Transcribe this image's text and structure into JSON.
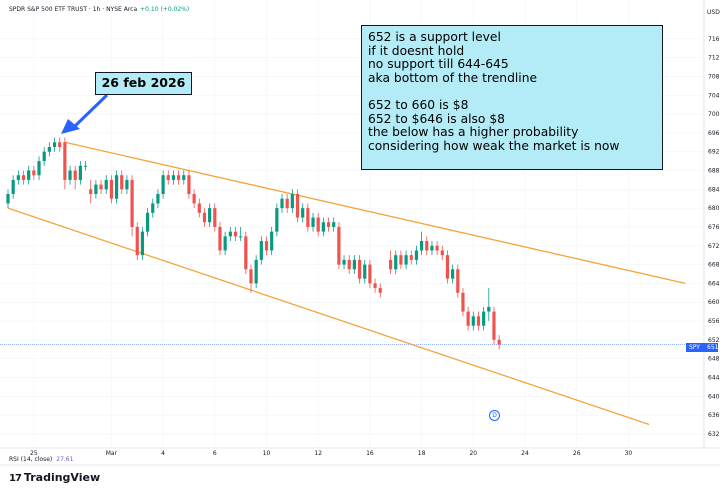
{
  "header": {
    "symbol_line": "SPDR S&P 500 ETF TRUST · 1h · NYSE Arca",
    "change": "+0.10 (+0.02%)",
    "currency": "USD"
  },
  "annotation": {
    "lines": [
      "652 is a support level",
      "if it doesnt hold",
      "no support till 644-645",
      "aka bottom of the trendline",
      "",
      "652 to 660 is $8",
      "652 to $646 is also $8",
      "the below has a higher probability",
      "considering how weak the market is now"
    ]
  },
  "callout": {
    "label": "26 feb 2026"
  },
  "price_tag": {
    "symbol": "SPY",
    "price": "651"
  },
  "indicator": {
    "label": "RSI (14, close)",
    "value": "27.61"
  },
  "brand": {
    "name": "TradingView"
  },
  "event_badge": {
    "label": "D"
  },
  "colors": {
    "up": "#089981",
    "down": "#ef5350",
    "trendline": "#f5a43c",
    "annotation_bg": "#b3ecf7",
    "accent": "#2962ff"
  },
  "chart_data": {
    "type": "candlestick",
    "ylim": [
      629,
      720
    ],
    "y_ticks": [
      632,
      636,
      640,
      644,
      648,
      652,
      656,
      660,
      664,
      668,
      672,
      676,
      680,
      684,
      688,
      692,
      696,
      700,
      704,
      708,
      712,
      716
    ],
    "x_tick_labels": [
      "25",
      "Mar",
      "4",
      "6",
      "10",
      "12",
      "16",
      "18",
      "20",
      "24",
      "26",
      "30"
    ],
    "x_range": [
      0,
      120
    ],
    "x_tick_positions": [
      5,
      20,
      30,
      40,
      50,
      60,
      70,
      80,
      90,
      100,
      110,
      120
    ],
    "grid": true,
    "candles": [
      [
        0,
        681,
        683,
        684,
        680
      ],
      [
        1,
        683,
        686,
        687,
        682
      ],
      [
        2,
        686,
        687,
        688,
        685
      ],
      [
        3,
        687,
        686,
        688,
        685
      ],
      [
        4,
        686,
        688,
        689,
        685
      ],
      [
        5,
        688,
        687,
        689,
        686
      ],
      [
        6,
        687,
        690,
        691,
        686
      ],
      [
        7,
        690,
        692,
        693,
        689
      ],
      [
        8,
        692,
        693,
        694,
        691
      ],
      [
        9,
        693,
        694,
        695,
        692
      ],
      [
        10,
        694,
        693,
        695,
        692
      ],
      [
        11,
        694,
        686,
        695,
        684
      ],
      [
        12,
        686,
        688,
        689,
        685
      ],
      [
        13,
        688,
        686,
        689,
        684
      ],
      [
        14,
        686,
        689,
        690,
        685
      ],
      [
        15,
        689,
        689,
        690,
        688
      ],
      [
        16,
        684,
        683,
        686,
        681
      ],
      [
        17,
        683,
        685,
        686,
        682
      ],
      [
        18,
        685,
        684,
        686,
        683
      ],
      [
        19,
        684,
        686,
        687,
        683
      ],
      [
        20,
        686,
        682,
        687,
        681
      ],
      [
        21,
        682,
        687,
        688,
        681
      ],
      [
        22,
        687,
        684,
        688,
        683
      ],
      [
        23,
        684,
        686,
        687,
        683
      ],
      [
        24,
        686,
        676,
        687,
        674
      ],
      [
        25,
        676,
        670,
        677,
        669
      ],
      [
        26,
        670,
        675,
        676,
        669
      ],
      [
        27,
        675,
        679,
        680,
        674
      ],
      [
        28,
        679,
        681,
        682,
        678
      ],
      [
        29,
        681,
        683,
        684,
        680
      ],
      [
        30,
        683,
        687,
        688,
        682
      ],
      [
        31,
        687,
        686,
        688,
        685
      ],
      [
        32,
        686,
        687,
        688,
        685
      ],
      [
        33,
        687,
        686,
        688,
        685
      ],
      [
        34,
        686,
        687,
        688,
        685
      ],
      [
        35,
        687,
        683,
        688,
        682
      ],
      [
        36,
        683,
        681,
        684,
        680
      ],
      [
        37,
        681,
        679,
        682,
        678
      ],
      [
        38,
        679,
        677,
        680,
        676
      ],
      [
        39,
        677,
        680,
        681,
        676
      ],
      [
        40,
        680,
        676,
        681,
        675
      ],
      [
        41,
        676,
        671,
        677,
        670
      ],
      [
        42,
        671,
        674,
        675,
        670
      ],
      [
        43,
        674,
        675,
        676,
        673
      ],
      [
        44,
        675,
        674,
        676,
        673
      ],
      [
        45,
        674,
        674,
        676,
        673
      ],
      [
        46,
        674,
        667,
        675,
        666
      ],
      [
        47,
        667,
        664,
        668,
        662
      ],
      [
        48,
        664,
        669,
        670,
        663
      ],
      [
        49,
        669,
        673,
        674,
        668
      ],
      [
        50,
        673,
        671,
        674,
        670
      ],
      [
        51,
        671,
        675,
        676,
        670
      ],
      [
        52,
        675,
        680,
        681,
        674
      ],
      [
        53,
        680,
        682,
        683,
        679
      ],
      [
        54,
        682,
        680,
        683,
        679
      ],
      [
        55,
        680,
        683,
        684,
        679
      ],
      [
        56,
        683,
        678,
        684,
        677
      ],
      [
        57,
        678,
        680,
        681,
        677
      ],
      [
        58,
        680,
        676,
        681,
        675
      ],
      [
        59,
        676,
        678,
        679,
        675
      ],
      [
        60,
        678,
        675,
        679,
        674
      ],
      [
        61,
        675,
        677,
        678,
        674
      ],
      [
        62,
        677,
        676,
        678,
        675
      ],
      [
        63,
        676,
        677,
        678,
        675
      ],
      [
        64,
        676,
        668,
        677,
        667
      ],
      [
        65,
        668,
        669,
        670,
        667
      ],
      [
        66,
        669,
        667,
        670,
        666
      ],
      [
        67,
        667,
        669,
        670,
        666
      ],
      [
        68,
        669,
        665,
        670,
        664
      ],
      [
        69,
        665,
        668,
        669,
        664
      ],
      [
        70,
        668,
        664,
        669,
        663
      ],
      [
        71,
        664,
        663,
        665,
        662
      ],
      [
        72,
        663,
        662,
        664,
        661
      ],
      [
        74,
        669,
        667,
        671,
        666
      ],
      [
        75,
        667,
        670,
        671,
        666
      ],
      [
        76,
        670,
        668,
        671,
        667
      ],
      [
        77,
        668,
        670,
        671,
        667
      ],
      [
        78,
        670,
        669,
        671,
        668
      ],
      [
        79,
        669,
        671,
        672,
        668
      ],
      [
        80,
        671,
        673,
        675,
        670
      ],
      [
        81,
        673,
        671,
        674,
        670
      ],
      [
        82,
        671,
        672,
        673,
        670
      ],
      [
        83,
        672,
        671,
        673,
        670
      ],
      [
        84,
        671,
        670,
        672,
        669
      ],
      [
        85,
        670,
        665,
        671,
        664
      ],
      [
        86,
        665,
        667,
        668,
        664
      ],
      [
        87,
        667,
        662,
        668,
        661
      ],
      [
        88,
        662,
        658,
        663,
        657
      ],
      [
        89,
        658,
        655,
        659,
        654
      ],
      [
        90,
        655,
        657,
        658,
        654
      ],
      [
        91,
        657,
        655,
        658,
        654
      ],
      [
        92,
        655,
        658,
        659,
        654
      ],
      [
        93,
        658,
        659,
        663,
        656
      ],
      [
        94,
        658,
        652,
        659,
        651
      ],
      [
        95,
        652,
        651,
        653,
        650
      ]
    ],
    "trendlines": [
      {
        "name": "upper",
        "from": [
          11,
          694
        ],
        "to": [
          131,
          664
        ]
      },
      {
        "name": "lower",
        "from": [
          0,
          680
        ],
        "to": [
          124,
          634
        ]
      }
    ],
    "support_level": 651
  }
}
